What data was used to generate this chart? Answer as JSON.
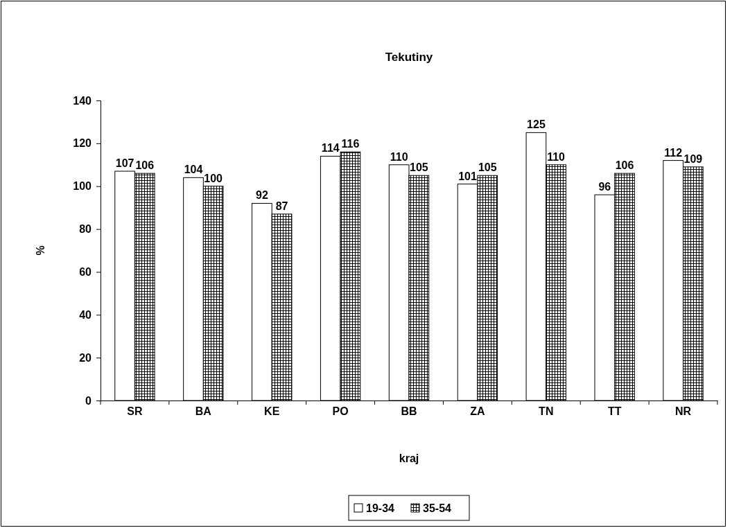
{
  "chart_data": {
    "type": "bar",
    "title": "Tekutiny",
    "xlabel": "kraj",
    "ylabel": "%",
    "categories": [
      "SR",
      "BA",
      "KE",
      "PO",
      "BB",
      "ZA",
      "TN",
      "TT",
      "NR"
    ],
    "series": [
      {
        "name": "19-34",
        "color": "#ffffff",
        "values": [
          107,
          104,
          92,
          114,
          110,
          101,
          125,
          96,
          112
        ]
      },
      {
        "name": "35-54",
        "color": "#000000",
        "values": [
          106,
          100,
          87,
          116,
          105,
          105,
          110,
          106,
          109
        ]
      }
    ],
    "ylim": [
      0,
      140
    ],
    "yticks": [
      0,
      20,
      40,
      60,
      80,
      100,
      120,
      140
    ],
    "grid": false,
    "legend": "bottom",
    "data_labels": true
  }
}
